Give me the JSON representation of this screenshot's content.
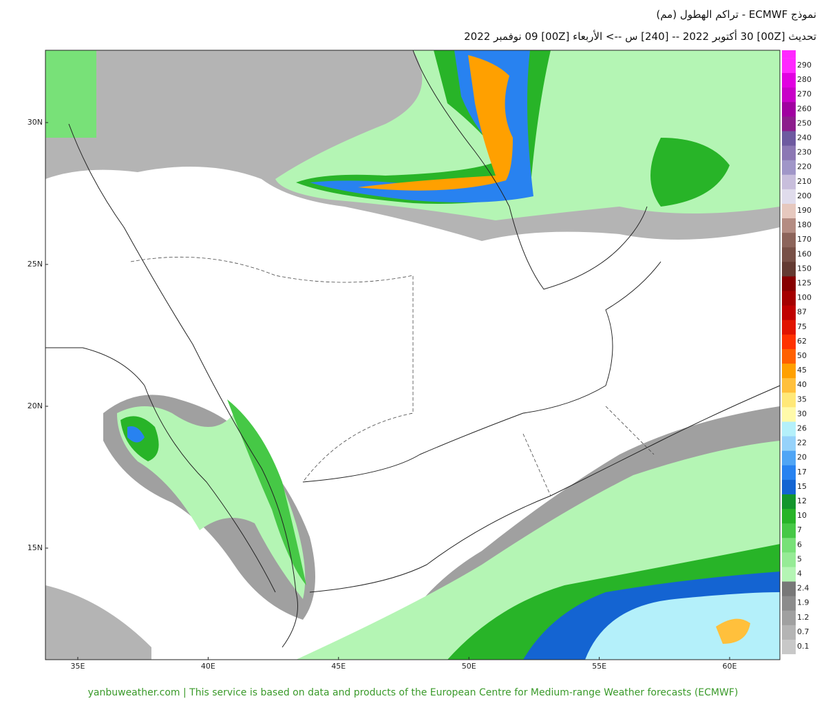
{
  "header": {
    "line1": "نموذج ECMWF  - تراكم الهطول (مم)",
    "line2": "تحديث [00Z] 30 أكتوبر 2022 -- [240] س --> الأربعاء [00Z] 09 نوفمبر 2022"
  },
  "map": {
    "lat_labels": [
      "30N",
      "25N",
      "20N",
      "15N"
    ],
    "lon_labels": [
      "35E",
      "40E",
      "45E",
      "50E",
      "55E",
      "60E"
    ]
  },
  "legend": {
    "levels": [
      {
        "label": "0.1",
        "color": "#c8c8c8"
      },
      {
        "label": "0.7",
        "color": "#b4b4b4"
      },
      {
        "label": "1.2",
        "color": "#a0a0a0"
      },
      {
        "label": "1.9",
        "color": "#8c8c8c"
      },
      {
        "label": "2.4",
        "color": "#787878"
      },
      {
        "label": "4",
        "color": "#b4f5b4"
      },
      {
        "label": "5",
        "color": "#96eb96"
      },
      {
        "label": "6",
        "color": "#78e178"
      },
      {
        "label": "7",
        "color": "#46c846"
      },
      {
        "label": "10",
        "color": "#28b428"
      },
      {
        "label": "12",
        "color": "#14962d"
      },
      {
        "label": "15",
        "color": "#1464d2"
      },
      {
        "label": "17",
        "color": "#2882f0"
      },
      {
        "label": "20",
        "color": "#50a5f5"
      },
      {
        "label": "22",
        "color": "#96d2fa"
      },
      {
        "label": "26",
        "color": "#b4f0fa"
      },
      {
        "label": "30",
        "color": "#fffaaa"
      },
      {
        "label": "35",
        "color": "#ffe878"
      },
      {
        "label": "40",
        "color": "#ffc03c"
      },
      {
        "label": "45",
        "color": "#ffa000"
      },
      {
        "label": "50",
        "color": "#ff6000"
      },
      {
        "label": "62",
        "color": "#ff3200"
      },
      {
        "label": "75",
        "color": "#e11400"
      },
      {
        "label": "87",
        "color": "#c00000"
      },
      {
        "label": "100",
        "color": "#a50000"
      },
      {
        "label": "125",
        "color": "#870000"
      },
      {
        "label": "150",
        "color": "#643b32"
      },
      {
        "label": "160",
        "color": "#785046"
      },
      {
        "label": "170",
        "color": "#8c645a"
      },
      {
        "label": "180",
        "color": "#b48c82"
      },
      {
        "label": "190",
        "color": "#e6c8be"
      },
      {
        "label": "200",
        "color": "#e0dcec"
      },
      {
        "label": "210",
        "color": "#c8bedc"
      },
      {
        "label": "220",
        "color": "#a096c8"
      },
      {
        "label": "230",
        "color": "#8c78b4"
      },
      {
        "label": "240",
        "color": "#6e5aa0"
      },
      {
        "label": "250",
        "color": "#8c1e8c"
      },
      {
        "label": "260",
        "color": "#a000a0"
      },
      {
        "label": "270",
        "color": "#c800c8"
      },
      {
        "label": "280",
        "color": "#e100e1"
      },
      {
        "label": "290",
        "color": "#ff28ff"
      }
    ]
  },
  "footer": "yanbuweather.com | This service is based on data and products of the European Centre for Medium-range Weather forecasts (ECMWF)"
}
